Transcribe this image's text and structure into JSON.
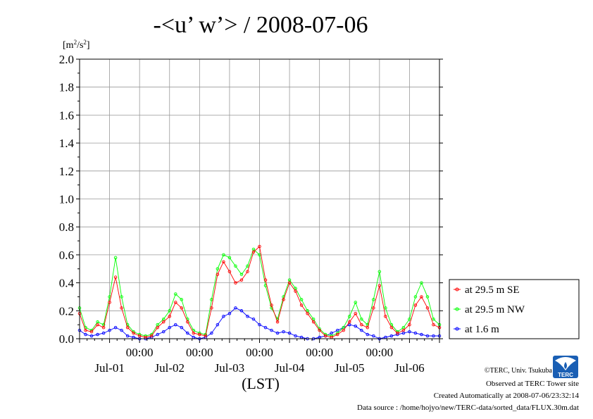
{
  "chart_data": {
    "type": "line",
    "title": "-<u’ w’> / 2008-07-06",
    "ylabel": "[m2/s2]",
    "ylabel_base": "[m",
    "ylabel_sup1": "2",
    "ylabel_mid": "/s",
    "ylabel_sup2": "2",
    "ylabel_end": "]",
    "xlabel": "(LST)",
    "ylim": [
      0,
      2.0
    ],
    "xlim_days": [
      0,
      6
    ],
    "y_ticks": [
      "0.0",
      "0.2",
      "0.4",
      "0.6",
      "0.8",
      "1.0",
      "1.2",
      "1.4",
      "1.6",
      "1.8",
      "2.0"
    ],
    "x_time_labels": [
      "00:00",
      "00:00",
      "00:00",
      "00:00",
      "00:00"
    ],
    "x_day_labels": [
      "Jul-01",
      "Jul-02",
      "Jul-03",
      "Jul-04",
      "Jul-05",
      "Jul-06"
    ],
    "grid": true,
    "legend_position": "right",
    "series": [
      {
        "name": "at 29.5 m SE",
        "color": "#ff0000",
        "x": [
          0.0,
          0.1,
          0.2,
          0.3,
          0.4,
          0.5,
          0.6,
          0.7,
          0.8,
          0.9,
          1.0,
          1.1,
          1.2,
          1.3,
          1.4,
          1.5,
          1.6,
          1.7,
          1.8,
          1.9,
          2.0,
          2.1,
          2.2,
          2.3,
          2.4,
          2.5,
          2.6,
          2.7,
          2.8,
          2.9,
          3.0,
          3.1,
          3.2,
          3.3,
          3.4,
          3.5,
          3.6,
          3.7,
          3.8,
          3.9,
          4.0,
          4.1,
          4.2,
          4.3,
          4.4,
          4.5,
          4.6,
          4.7,
          4.8,
          4.9,
          5.0,
          5.1,
          5.2,
          5.3,
          5.4,
          5.5,
          5.6,
          5.7,
          5.8,
          5.9,
          6.0
        ],
        "y": [
          0.18,
          0.06,
          0.05,
          0.1,
          0.08,
          0.26,
          0.44,
          0.22,
          0.08,
          0.04,
          0.02,
          0.01,
          0.02,
          0.08,
          0.12,
          0.16,
          0.26,
          0.22,
          0.12,
          0.04,
          0.03,
          0.02,
          0.22,
          0.46,
          0.55,
          0.48,
          0.4,
          0.42,
          0.48,
          0.62,
          0.66,
          0.42,
          0.24,
          0.12,
          0.28,
          0.4,
          0.34,
          0.24,
          0.18,
          0.12,
          0.06,
          0.02,
          0.01,
          0.03,
          0.06,
          0.12,
          0.18,
          0.1,
          0.08,
          0.22,
          0.38,
          0.16,
          0.08,
          0.04,
          0.06,
          0.1,
          0.24,
          0.3,
          0.22,
          0.1,
          0.08
        ]
      },
      {
        "name": "at 29.5 m NW",
        "color": "#00ff00",
        "x": [
          0.0,
          0.1,
          0.2,
          0.3,
          0.4,
          0.5,
          0.6,
          0.7,
          0.8,
          0.9,
          1.0,
          1.1,
          1.2,
          1.3,
          1.4,
          1.5,
          1.6,
          1.7,
          1.8,
          1.9,
          2.0,
          2.1,
          2.2,
          2.3,
          2.4,
          2.5,
          2.6,
          2.7,
          2.8,
          2.9,
          3.0,
          3.1,
          3.2,
          3.3,
          3.4,
          3.5,
          3.6,
          3.7,
          3.8,
          3.9,
          4.0,
          4.1,
          4.2,
          4.3,
          4.4,
          4.5,
          4.6,
          4.7,
          4.8,
          4.9,
          5.0,
          5.1,
          5.2,
          5.3,
          5.4,
          5.5,
          5.6,
          5.7,
          5.8,
          5.9,
          6.0
        ],
        "y": [
          0.22,
          0.08,
          0.06,
          0.12,
          0.1,
          0.3,
          0.58,
          0.3,
          0.1,
          0.05,
          0.03,
          0.02,
          0.03,
          0.1,
          0.14,
          0.2,
          0.32,
          0.28,
          0.14,
          0.06,
          0.04,
          0.03,
          0.28,
          0.5,
          0.6,
          0.58,
          0.52,
          0.46,
          0.52,
          0.64,
          0.6,
          0.38,
          0.22,
          0.14,
          0.3,
          0.42,
          0.36,
          0.28,
          0.2,
          0.14,
          0.07,
          0.03,
          0.02,
          0.04,
          0.08,
          0.16,
          0.26,
          0.14,
          0.1,
          0.28,
          0.48,
          0.22,
          0.1,
          0.05,
          0.08,
          0.14,
          0.3,
          0.4,
          0.3,
          0.14,
          0.1
        ]
      },
      {
        "name": "at 1.6 m",
        "color": "#0000ff",
        "x": [
          0.0,
          0.1,
          0.2,
          0.3,
          0.4,
          0.5,
          0.6,
          0.7,
          0.8,
          0.9,
          1.0,
          1.1,
          1.2,
          1.3,
          1.4,
          1.5,
          1.6,
          1.7,
          1.8,
          1.9,
          2.0,
          2.1,
          2.2,
          2.3,
          2.4,
          2.5,
          2.6,
          2.7,
          2.8,
          2.9,
          3.0,
          3.1,
          3.2,
          3.3,
          3.4,
          3.5,
          3.6,
          3.7,
          3.8,
          3.9,
          4.0,
          4.1,
          4.2,
          4.3,
          4.4,
          4.5,
          4.6,
          4.7,
          4.8,
          4.9,
          5.0,
          5.1,
          5.2,
          5.3,
          5.4,
          5.5,
          5.6,
          5.7,
          5.8,
          5.9,
          6.0
        ],
        "y": [
          0.06,
          0.03,
          0.02,
          0.03,
          0.04,
          0.06,
          0.08,
          0.06,
          0.02,
          0.01,
          0.0,
          0.0,
          0.01,
          0.03,
          0.05,
          0.08,
          0.1,
          0.08,
          0.04,
          0.01,
          0.0,
          0.01,
          0.04,
          0.1,
          0.16,
          0.18,
          0.22,
          0.2,
          0.16,
          0.14,
          0.1,
          0.08,
          0.06,
          0.04,
          0.05,
          0.04,
          0.02,
          0.01,
          0.0,
          0.0,
          0.01,
          0.02,
          0.04,
          0.06,
          0.08,
          0.1,
          0.09,
          0.06,
          0.03,
          0.02,
          0.0,
          0.01,
          0.02,
          0.03,
          0.04,
          0.05,
          0.04,
          0.03,
          0.02,
          0.02,
          0.02
        ]
      }
    ]
  },
  "footer": {
    "copyright": "©TERC, Univ. Tsukuba",
    "observed": "Observed at TERC Tower site",
    "created": "Created Automatically at 2008-07-06/23:32:14",
    "source": "Data source : /home/hojyo/new/TERC-data/sorted_data/FLUX.30m.dat"
  },
  "logo": {
    "text": "TERC"
  }
}
